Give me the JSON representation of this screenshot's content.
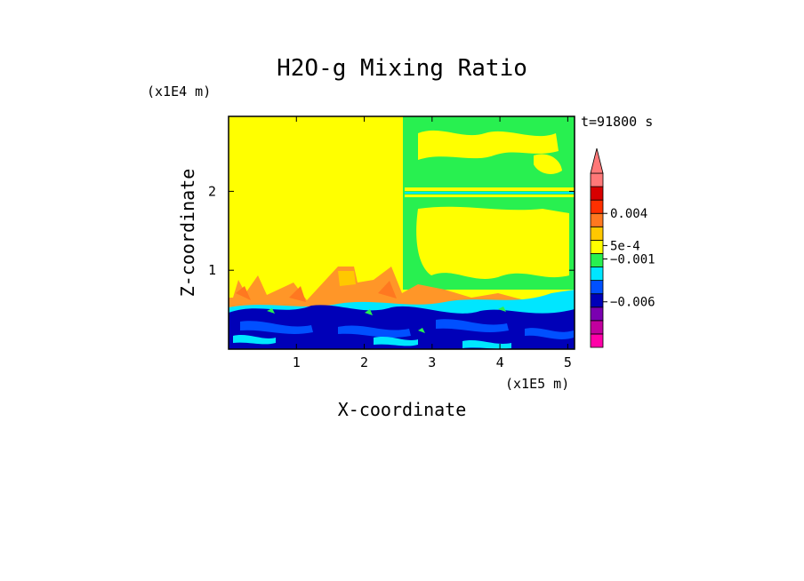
{
  "chart_data": {
    "type": "heatmap",
    "title": "H2O-g Mixing Ratio",
    "time_label": "t=91800 s",
    "xlabel": "X-coordinate",
    "ylabel": "Z-coordinate",
    "x_unit": "(x1E5 m)",
    "y_unit": "(x1E4 m)",
    "xlim": [
      0,
      5.1
    ],
    "ylim": [
      0,
      2.95
    ],
    "x_ticks": [
      1,
      2,
      3,
      4,
      5
    ],
    "y_ticks": [
      1,
      2
    ],
    "colorbar": {
      "colors": [
        "#ff00a8",
        "#c2009e",
        "#7a00b0",
        "#0000b8",
        "#0050ff",
        "#00e6ff",
        "#28f050",
        "#ffff00",
        "#ffc800",
        "#ff7820",
        "#ff3000",
        "#d80000",
        "#ff7878"
      ],
      "labels": [
        {
          "text": "0.004",
          "level": 0.004
        },
        {
          "text": "5e-4",
          "level": 0.0005
        },
        {
          "text": "−0.001",
          "level": -0.001
        },
        {
          "text": "−0.006",
          "level": -0.006
        }
      ],
      "extend": "max"
    },
    "regions": [
      {
        "x": [
          0.0,
          2.6
        ],
        "z": [
          0.95,
          2.95
        ],
        "level": "yellow"
      },
      {
        "x": [
          2.6,
          5.1
        ],
        "z": [
          2.0,
          2.95
        ],
        "level": "green"
      },
      {
        "x": [
          0.0,
          5.1
        ],
        "z": [
          0.0,
          0.6
        ],
        "level": "blue"
      }
    ]
  }
}
